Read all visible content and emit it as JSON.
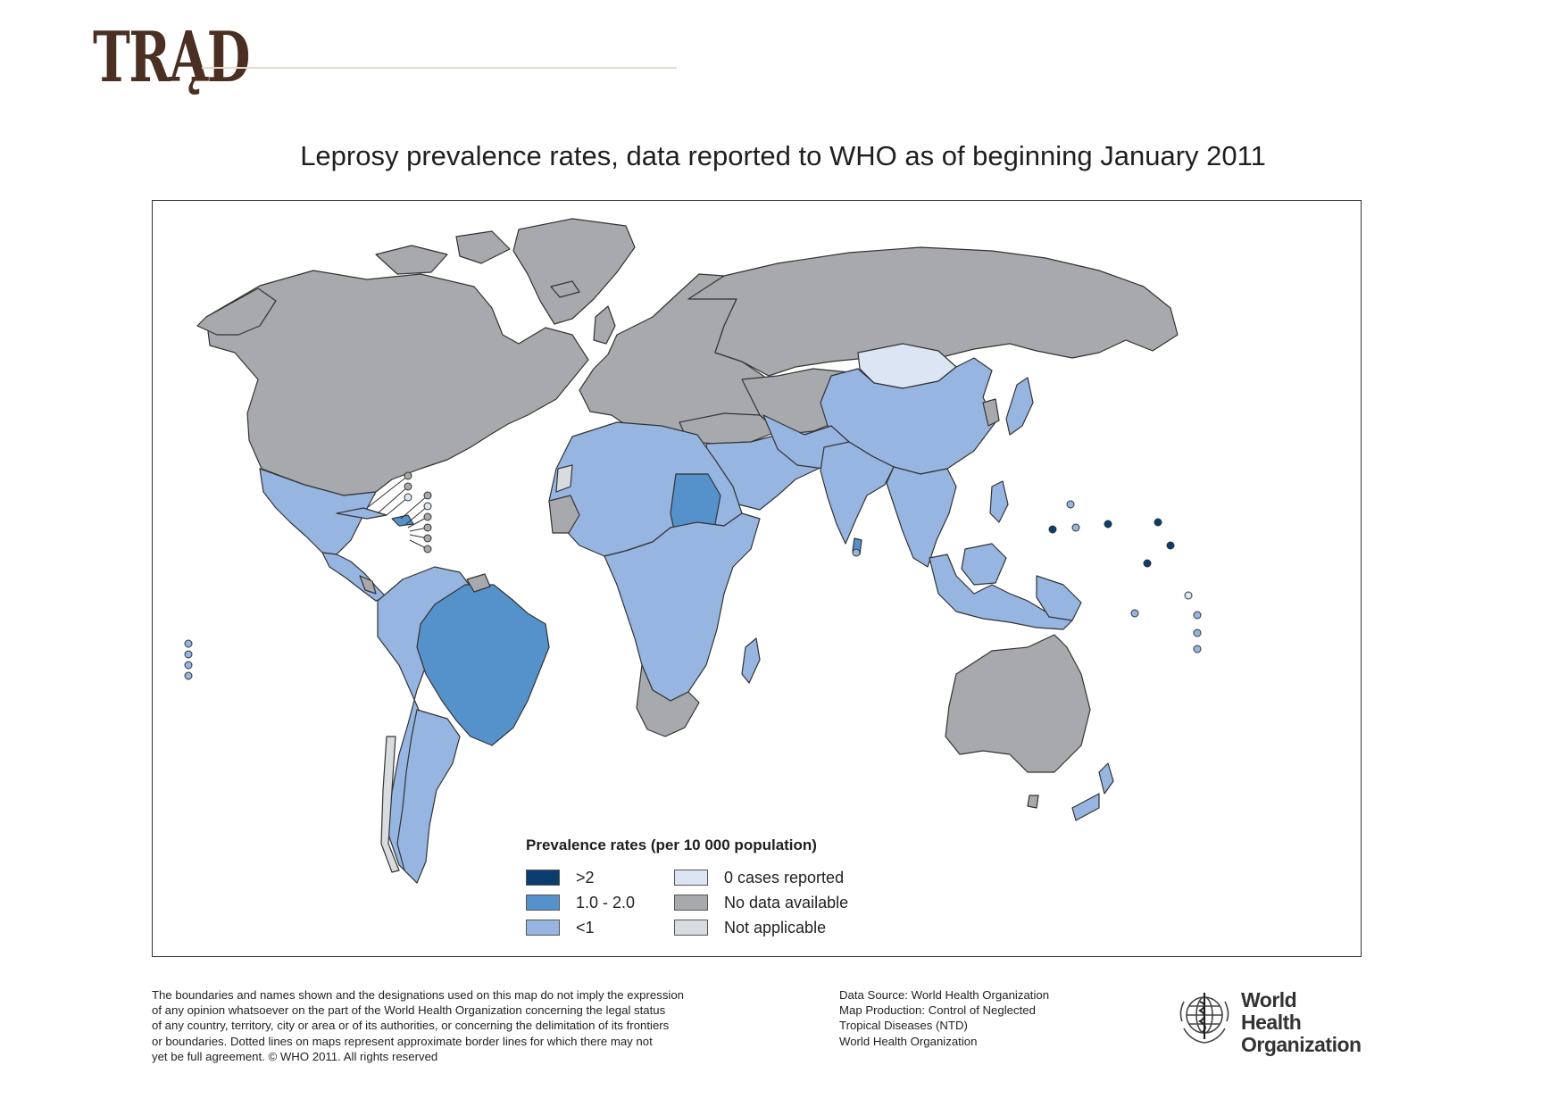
{
  "header": {
    "logo_word": "TRĄD"
  },
  "map": {
    "title": "Leprosy prevalence rates, data reported to WHO as of beginning January 2011"
  },
  "legend": {
    "title": "Prevalence rates (per 10 000 population)",
    "items": [
      {
        "label": ">2",
        "color": "#0b3e6f"
      },
      {
        "label": "1.0 - 2.0",
        "color": "#5592cc"
      },
      {
        "label": "<1",
        "color": "#96b5e1"
      },
      {
        "label": "0 cases reported",
        "color": "#dbe5f4"
      },
      {
        "label": "No data available",
        "color": "#a7a9ac"
      },
      {
        "label": "Not applicable",
        "color": "#d9dcdf"
      }
    ]
  },
  "footer": {
    "disclaimer_lines": [
      "The boundaries and names shown and the designations used on this map do not imply the expression",
      "of any opinion whatsoever on the part of the World Health Organization concerning the legal status",
      "of any country, territory, city or area or of its authorities, or concerning the delimitation of its frontiers",
      "or boundaries. Dotted lines on maps represent approximate border lines for which there may not",
      "yet be full agreement. © WHO 2011. All rights reserved"
    ],
    "source_lines": [
      "Data Source: World Health Organization",
      "Map Production: Control of Neglected",
      "Tropical Diseases (NTD)",
      "World Health Organization"
    ],
    "who_name_line1": "World Health",
    "who_name_line2": "Organization"
  },
  "colors": {
    "high": "#0b3e6f",
    "mid": "#5592cc",
    "low": "#96b5e1",
    "zero": "#dbe5f4",
    "nodata": "#a7a9ac",
    "na": "#d9dcdf",
    "logo_brown": "#4a2f22"
  }
}
